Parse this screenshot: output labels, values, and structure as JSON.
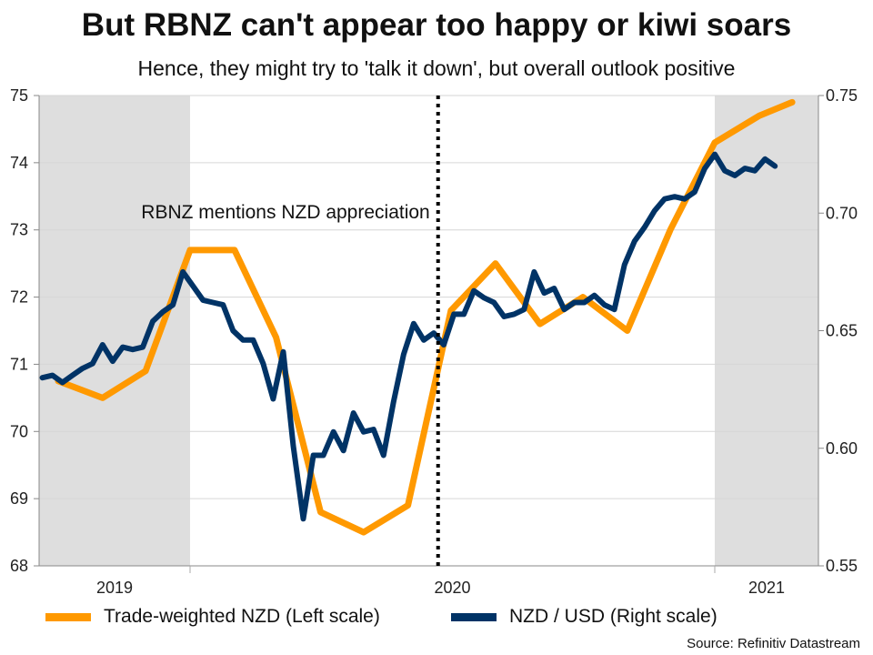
{
  "title": "But RBNZ can't appear too happy or kiwi soars",
  "subtitle": "Hence, they might try to 'talk it down', but overall outlook positive",
  "source": "Source: Refinitiv Datastream",
  "chart_data": {
    "type": "line",
    "title": "But RBNZ can't appear too happy or kiwi soars",
    "subtitle": "Hence, they might try to 'talk it down', but overall outlook positive",
    "x_range": [
      "2019-09-17",
      "2021-03-14"
    ],
    "x_tick_labels": [
      "2019",
      "2020",
      "2021"
    ],
    "shaded_periods": [
      [
        "2019-09-17",
        "2020-01-01"
      ],
      [
        "2021-01-01",
        "2021-03-14"
      ]
    ],
    "shade_color": "#dedede",
    "grid": "horizontal",
    "left_axis": {
      "range": [
        68,
        75
      ],
      "ticks": [
        68,
        69,
        70,
        71,
        72,
        73,
        74,
        75
      ]
    },
    "right_axis": {
      "range": [
        0.55,
        0.75
      ],
      "ticks": [
        "0.55",
        "0.60",
        "0.65",
        "0.70",
        "0.75"
      ]
    },
    "annotation": {
      "text": "RBNZ mentions NZD appreciation",
      "date": "2020-06-22",
      "style": "dotted vertical line"
    },
    "legend_placement": "bottom",
    "series": [
      {
        "name": "Trade-weighted NZD (Left scale)",
        "axis": "left",
        "color": "#ff9900",
        "x": [
          "2019-10-01",
          "2019-11-01",
          "2019-12-01",
          "2020-01-01",
          "2020-02-01",
          "2020-03-01",
          "2020-04-01",
          "2020-05-01",
          "2020-06-01",
          "2020-07-01",
          "2020-08-01",
          "2020-09-01",
          "2020-10-01",
          "2020-11-01",
          "2020-12-01",
          "2021-01-01",
          "2021-02-01",
          "2021-02-24"
        ],
        "y": [
          70.75,
          70.5,
          70.9,
          72.7,
          72.7,
          71.4,
          68.8,
          68.5,
          68.9,
          71.8,
          72.5,
          71.6,
          72.0,
          71.5,
          73.0,
          74.3,
          74.7,
          74.9
        ]
      },
      {
        "name": "NZD / USD (Right scale)",
        "axis": "right",
        "color": "#003366",
        "x": [
          "2019-09-20",
          "2019-09-27",
          "2019-10-04",
          "2019-10-11",
          "2019-10-18",
          "2019-10-25",
          "2019-11-01",
          "2019-11-08",
          "2019-11-15",
          "2019-11-22",
          "2019-11-29",
          "2019-12-06",
          "2019-12-13",
          "2019-12-20",
          "2019-12-27",
          "2020-01-03",
          "2020-01-10",
          "2020-01-17",
          "2020-01-24",
          "2020-01-31",
          "2020-02-07",
          "2020-02-14",
          "2020-02-21",
          "2020-02-28",
          "2020-03-06",
          "2020-03-13",
          "2020-03-20",
          "2020-03-27",
          "2020-04-03",
          "2020-04-10",
          "2020-04-17",
          "2020-04-24",
          "2020-05-01",
          "2020-05-08",
          "2020-05-15",
          "2020-05-22",
          "2020-05-29",
          "2020-06-05",
          "2020-06-12",
          "2020-06-19",
          "2020-06-26",
          "2020-07-03",
          "2020-07-10",
          "2020-07-17",
          "2020-07-24",
          "2020-07-31",
          "2020-08-07",
          "2020-08-14",
          "2020-08-21",
          "2020-08-28",
          "2020-09-04",
          "2020-09-11",
          "2020-09-18",
          "2020-09-25",
          "2020-10-02",
          "2020-10-09",
          "2020-10-16",
          "2020-10-23",
          "2020-10-30",
          "2020-11-06",
          "2020-11-13",
          "2020-11-20",
          "2020-11-27",
          "2020-12-04",
          "2020-12-11",
          "2020-12-18",
          "2020-12-25",
          "2021-01-01",
          "2021-01-08",
          "2021-01-15",
          "2021-01-22",
          "2021-01-29",
          "2021-02-05",
          "2021-02-12"
        ],
        "y": [
          0.63,
          0.631,
          0.628,
          0.631,
          0.634,
          0.636,
          0.644,
          0.637,
          0.643,
          0.642,
          0.643,
          0.654,
          0.658,
          0.661,
          0.675,
          0.669,
          0.663,
          0.662,
          0.661,
          0.65,
          0.646,
          0.646,
          0.636,
          0.621,
          0.641,
          0.601,
          0.57,
          0.597,
          0.597,
          0.607,
          0.599,
          0.615,
          0.607,
          0.608,
          0.597,
          0.62,
          0.64,
          0.653,
          0.646,
          0.649,
          0.644,
          0.657,
          0.657,
          0.667,
          0.664,
          0.662,
          0.656,
          0.657,
          0.659,
          0.675,
          0.666,
          0.668,
          0.659,
          0.662,
          0.662,
          0.665,
          0.661,
          0.659,
          0.678,
          0.688,
          0.694,
          0.701,
          0.706,
          0.707,
          0.706,
          0.709,
          0.719,
          0.725,
          0.718,
          0.716,
          0.719,
          0.718,
          0.723,
          0.72
        ]
      }
    ]
  }
}
